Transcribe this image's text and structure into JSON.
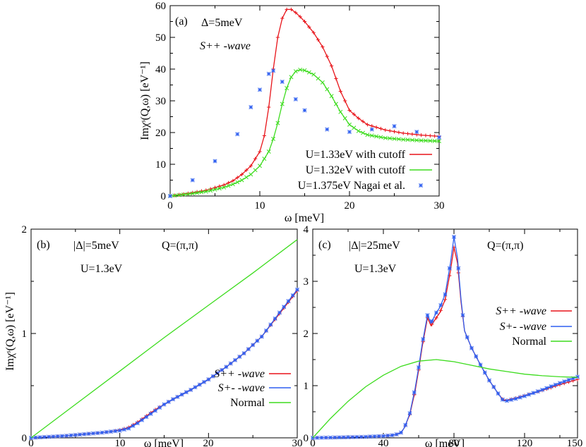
{
  "chart_data": [
    {
      "panel": "(a)",
      "type": "line",
      "xlabel": "ω [meV]",
      "ylabel": "Imχˢ(Q,ω) [eV⁻¹]",
      "xlim": [
        0,
        30
      ],
      "ylim": [
        0,
        60
      ],
      "xticks": [
        "0",
        "10",
        "20",
        "30"
      ],
      "yticks": [
        "0",
        "10",
        "20",
        "30",
        "40",
        "50",
        "60"
      ],
      "annotations": [
        "Δ=5meV",
        "S++ -wave"
      ],
      "legend_position": "lower-right",
      "series": [
        {
          "name": "U=1.33eV with cutoff",
          "color": "#e8141a",
          "marker": "plus",
          "x": [
            0,
            2,
            4,
            6,
            7,
            8,
            9,
            10,
            10.5,
            11,
            11.5,
            12,
            12.5,
            13,
            13.5,
            14,
            14.5,
            15,
            16,
            17,
            18,
            19,
            20,
            21,
            22,
            24,
            26,
            28,
            30
          ],
          "y": [
            0,
            0.8,
            1.8,
            3.5,
            4.8,
            6.8,
            9.5,
            14,
            19,
            28,
            40,
            50,
            56,
            58.8,
            58.8,
            57.8,
            56.5,
            55,
            51.5,
            47,
            41,
            33,
            27,
            24.5,
            22.5,
            20.8,
            19.8,
            19.2,
            18.8
          ]
        },
        {
          "name": "U=1.32eV with cutoff",
          "color": "#3ddc1e",
          "marker": "x",
          "x": [
            0,
            2,
            4,
            6,
            7,
            8,
            9,
            10,
            11,
            11.5,
            12,
            12.5,
            13,
            13.5,
            14,
            14.5,
            15,
            16,
            17,
            18,
            19,
            20,
            21,
            22,
            24,
            26,
            28,
            30
          ],
          "y": [
            0,
            0.6,
            1.4,
            2.7,
            3.7,
            5,
            6.8,
            9.5,
            14,
            18,
            23,
            29,
            34,
            37.5,
            39.3,
            39.8,
            39.6,
            38.3,
            35.8,
            31.5,
            26.5,
            22.5,
            20.5,
            19.3,
            18.3,
            17.8,
            17.5,
            17.3
          ]
        },
        {
          "name": "U=1.375eV Nagai et al.",
          "color": "#2f5ff0",
          "marker": "asterisk",
          "x": [
            0,
            2.5,
            5,
            7.5,
            9,
            10,
            11,
            11.5,
            12.5,
            14,
            15,
            17.5,
            20,
            22.5,
            25,
            27.5,
            30
          ],
          "y": [
            0,
            5,
            11,
            19.5,
            28,
            33.5,
            38.5,
            39.5,
            36,
            30.5,
            27,
            21,
            20.2,
            21,
            22,
            20.2,
            18.5
          ]
        }
      ]
    },
    {
      "panel": "(b)",
      "type": "line",
      "xlabel": "ω [meV]",
      "ylabel": "Imχˢ(Q,ω) [eV⁻¹]",
      "xlim": [
        0,
        30
      ],
      "ylim": [
        0,
        2
      ],
      "xticks": [
        "0",
        "10",
        "20",
        "30"
      ],
      "yticks": [
        "0",
        "1",
        "2"
      ],
      "annotations": [
        "|Δ|=5meV",
        "Q=(π,π)",
        "U=1.3eV"
      ],
      "legend_position": "lower-right",
      "series": [
        {
          "name": "S++ -wave",
          "color": "#e8141a",
          "marker": "plus",
          "x": [
            0,
            2,
            4,
            6,
            8,
            9,
            10,
            11,
            12,
            13,
            14,
            15,
            16,
            18,
            20,
            22,
            24,
            26,
            28,
            30
          ],
          "y": [
            0,
            0.01,
            0.02,
            0.035,
            0.05,
            0.06,
            0.075,
            0.1,
            0.15,
            0.21,
            0.27,
            0.32,
            0.37,
            0.46,
            0.56,
            0.68,
            0.81,
            0.97,
            1.19,
            1.41
          ]
        },
        {
          "name": "S+- -wave",
          "color": "#2f5ff0",
          "marker": "asterisk",
          "x": [
            0,
            2,
            4,
            6,
            8,
            9,
            10,
            11,
            12,
            13,
            14,
            15,
            16,
            18,
            20,
            22,
            24,
            26,
            28,
            30
          ],
          "y": [
            0,
            0.01,
            0.02,
            0.035,
            0.05,
            0.06,
            0.07,
            0.09,
            0.14,
            0.2,
            0.26,
            0.32,
            0.37,
            0.46,
            0.56,
            0.68,
            0.81,
            0.97,
            1.2,
            1.42
          ]
        },
        {
          "name": "Normal",
          "color": "#3ddc1e",
          "marker": "none",
          "x": [
            0,
            5,
            10,
            15,
            20,
            25,
            30
          ],
          "y": [
            0,
            0.32,
            0.64,
            0.96,
            1.27,
            1.58,
            1.9
          ]
        }
      ]
    },
    {
      "panel": "(c)",
      "type": "line",
      "xlabel": "ω [meV]",
      "ylabel": "",
      "xlim": [
        0,
        150
      ],
      "ylim": [
        0,
        4
      ],
      "xticks": [
        "0",
        "40",
        "80",
        "120",
        "150"
      ],
      "yticks": [
        "0",
        "1",
        "2",
        "3",
        "4"
      ],
      "annotations": [
        "|Δ|=25meV",
        "Q=(π,π)",
        "U=1.3eV"
      ],
      "legend_position": "upper-right",
      "series": [
        {
          "name": "S++ -wave",
          "color": "#e8141a",
          "marker": "plus",
          "x": [
            0,
            10,
            20,
            30,
            40,
            45,
            48,
            50,
            52,
            55,
            58,
            60,
            62,
            65,
            67,
            70,
            72,
            75,
            78,
            80,
            82,
            84,
            86,
            90,
            95,
            100,
            105,
            108,
            110,
            115,
            120,
            130,
            140,
            150
          ],
          "y": [
            0,
            0.005,
            0.012,
            0.02,
            0.035,
            0.05,
            0.07,
            0.1,
            0.2,
            0.45,
            0.9,
            1.3,
            1.75,
            2.3,
            2.15,
            2.3,
            2.4,
            2.65,
            3.2,
            3.65,
            3.35,
            2.6,
            2.05,
            1.72,
            1.4,
            1.1,
            0.85,
            0.72,
            0.72,
            0.76,
            0.81,
            0.91,
            1.02,
            1.12
          ]
        },
        {
          "name": "S+- -wave",
          "color": "#2f5ff0",
          "marker": "asterisk",
          "x": [
            0,
            10,
            20,
            30,
            40,
            45,
            48,
            50,
            52,
            55,
            58,
            60,
            62,
            65,
            67,
            70,
            72,
            75,
            78,
            80,
            82,
            84,
            86,
            90,
            95,
            100,
            105,
            108,
            110,
            115,
            120,
            130,
            140,
            150
          ],
          "y": [
            0,
            0.005,
            0.012,
            0.02,
            0.035,
            0.05,
            0.07,
            0.1,
            0.2,
            0.47,
            0.95,
            1.35,
            1.8,
            2.35,
            2.2,
            2.4,
            2.5,
            2.75,
            3.35,
            3.85,
            3.45,
            2.65,
            2.05,
            1.72,
            1.4,
            1.1,
            0.85,
            0.71,
            0.71,
            0.75,
            0.8,
            0.92,
            1.05,
            1.17
          ]
        },
        {
          "name": "Normal",
          "color": "#3ddc1e",
          "marker": "none",
          "x": [
            0,
            10,
            20,
            30,
            40,
            50,
            60,
            70,
            80,
            90,
            100,
            110,
            120,
            130,
            140,
            150
          ],
          "y": [
            0,
            0.37,
            0.7,
            0.98,
            1.2,
            1.37,
            1.47,
            1.5,
            1.46,
            1.39,
            1.32,
            1.27,
            1.22,
            1.19,
            1.17,
            1.16
          ]
        }
      ]
    }
  ]
}
